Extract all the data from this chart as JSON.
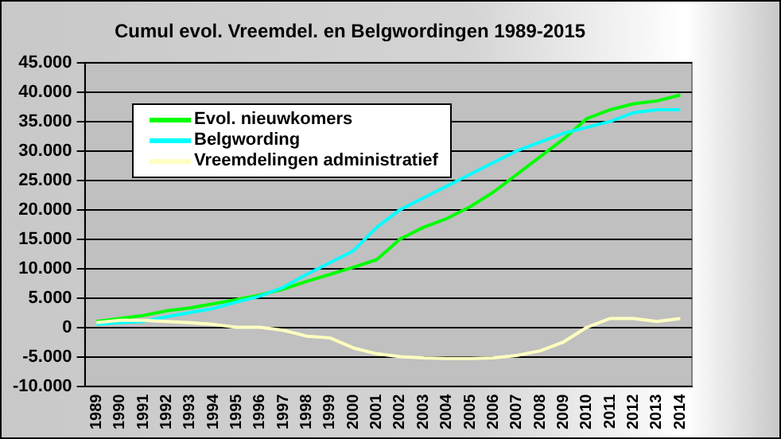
{
  "chart_data": {
    "type": "line",
    "title": "Cumul evol. Vreemdel. en Belgwordingen 1989-2015",
    "categories": [
      "1989",
      "1990",
      "1991",
      "1992",
      "1993",
      "1994",
      "1995",
      "1996",
      "1997",
      "1998",
      "1999",
      "2000",
      "2001",
      "2002",
      "2003",
      "2004",
      "2005",
      "2006",
      "2007",
      "2008",
      "2009",
      "2010",
      "2011",
      "2012",
      "2013",
      "2014"
    ],
    "series": [
      {
        "name": "Evol. nieuwkomers",
        "color": "#00ff00",
        "values": [
          1000,
          1500,
          2000,
          2800,
          3300,
          4000,
          4700,
          5500,
          6500,
          7800,
          9000,
          10200,
          11500,
          15000,
          17000,
          18500,
          20500,
          23000,
          26000,
          29000,
          32000,
          35500,
          37000,
          38000,
          38500,
          39500
        ]
      },
      {
        "name": "Belgwording",
        "color": "#00ffff",
        "values": [
          500,
          800,
          1000,
          1800,
          2500,
          3200,
          4300,
          5300,
          6800,
          9000,
          11000,
          13000,
          17000,
          20000,
          22000,
          24000,
          26000,
          28000,
          30000,
          31500,
          33000,
          34000,
          35000,
          36500,
          37000,
          37000
        ]
      },
      {
        "name": "Vreemdelingen administratief",
        "color": "#ffffc0",
        "values": [
          800,
          1200,
          1200,
          1000,
          800,
          500,
          0,
          0,
          -500,
          -1500,
          -1800,
          -3500,
          -4500,
          -5000,
          -5200,
          -5300,
          -5300,
          -5200,
          -4800,
          -4000,
          -2500,
          0,
          1500,
          1500,
          1000,
          1500
        ]
      }
    ],
    "ylim": [
      -10000,
      45000
    ],
    "yticks": [
      {
        "value": -10000,
        "label": "-10.000"
      },
      {
        "value": -5000,
        "label": "-5.000"
      },
      0,
      {
        "value": 5000,
        "label": "5.000"
      },
      {
        "value": 10000,
        "label": "10.000"
      },
      {
        "value": 15000,
        "label": "15.000"
      },
      {
        "value": 20000,
        "label": "20.000"
      },
      {
        "value": 25000,
        "label": "25.000"
      },
      {
        "value": 30000,
        "label": "30.000"
      },
      {
        "value": 35000,
        "label": "35.000"
      },
      {
        "value": 40000,
        "label": "40.000"
      },
      {
        "value": 45000,
        "label": "45.000"
      }
    ],
    "grid": "y",
    "legend": "top left",
    "marker": "none",
    "line_style": "solid"
  }
}
